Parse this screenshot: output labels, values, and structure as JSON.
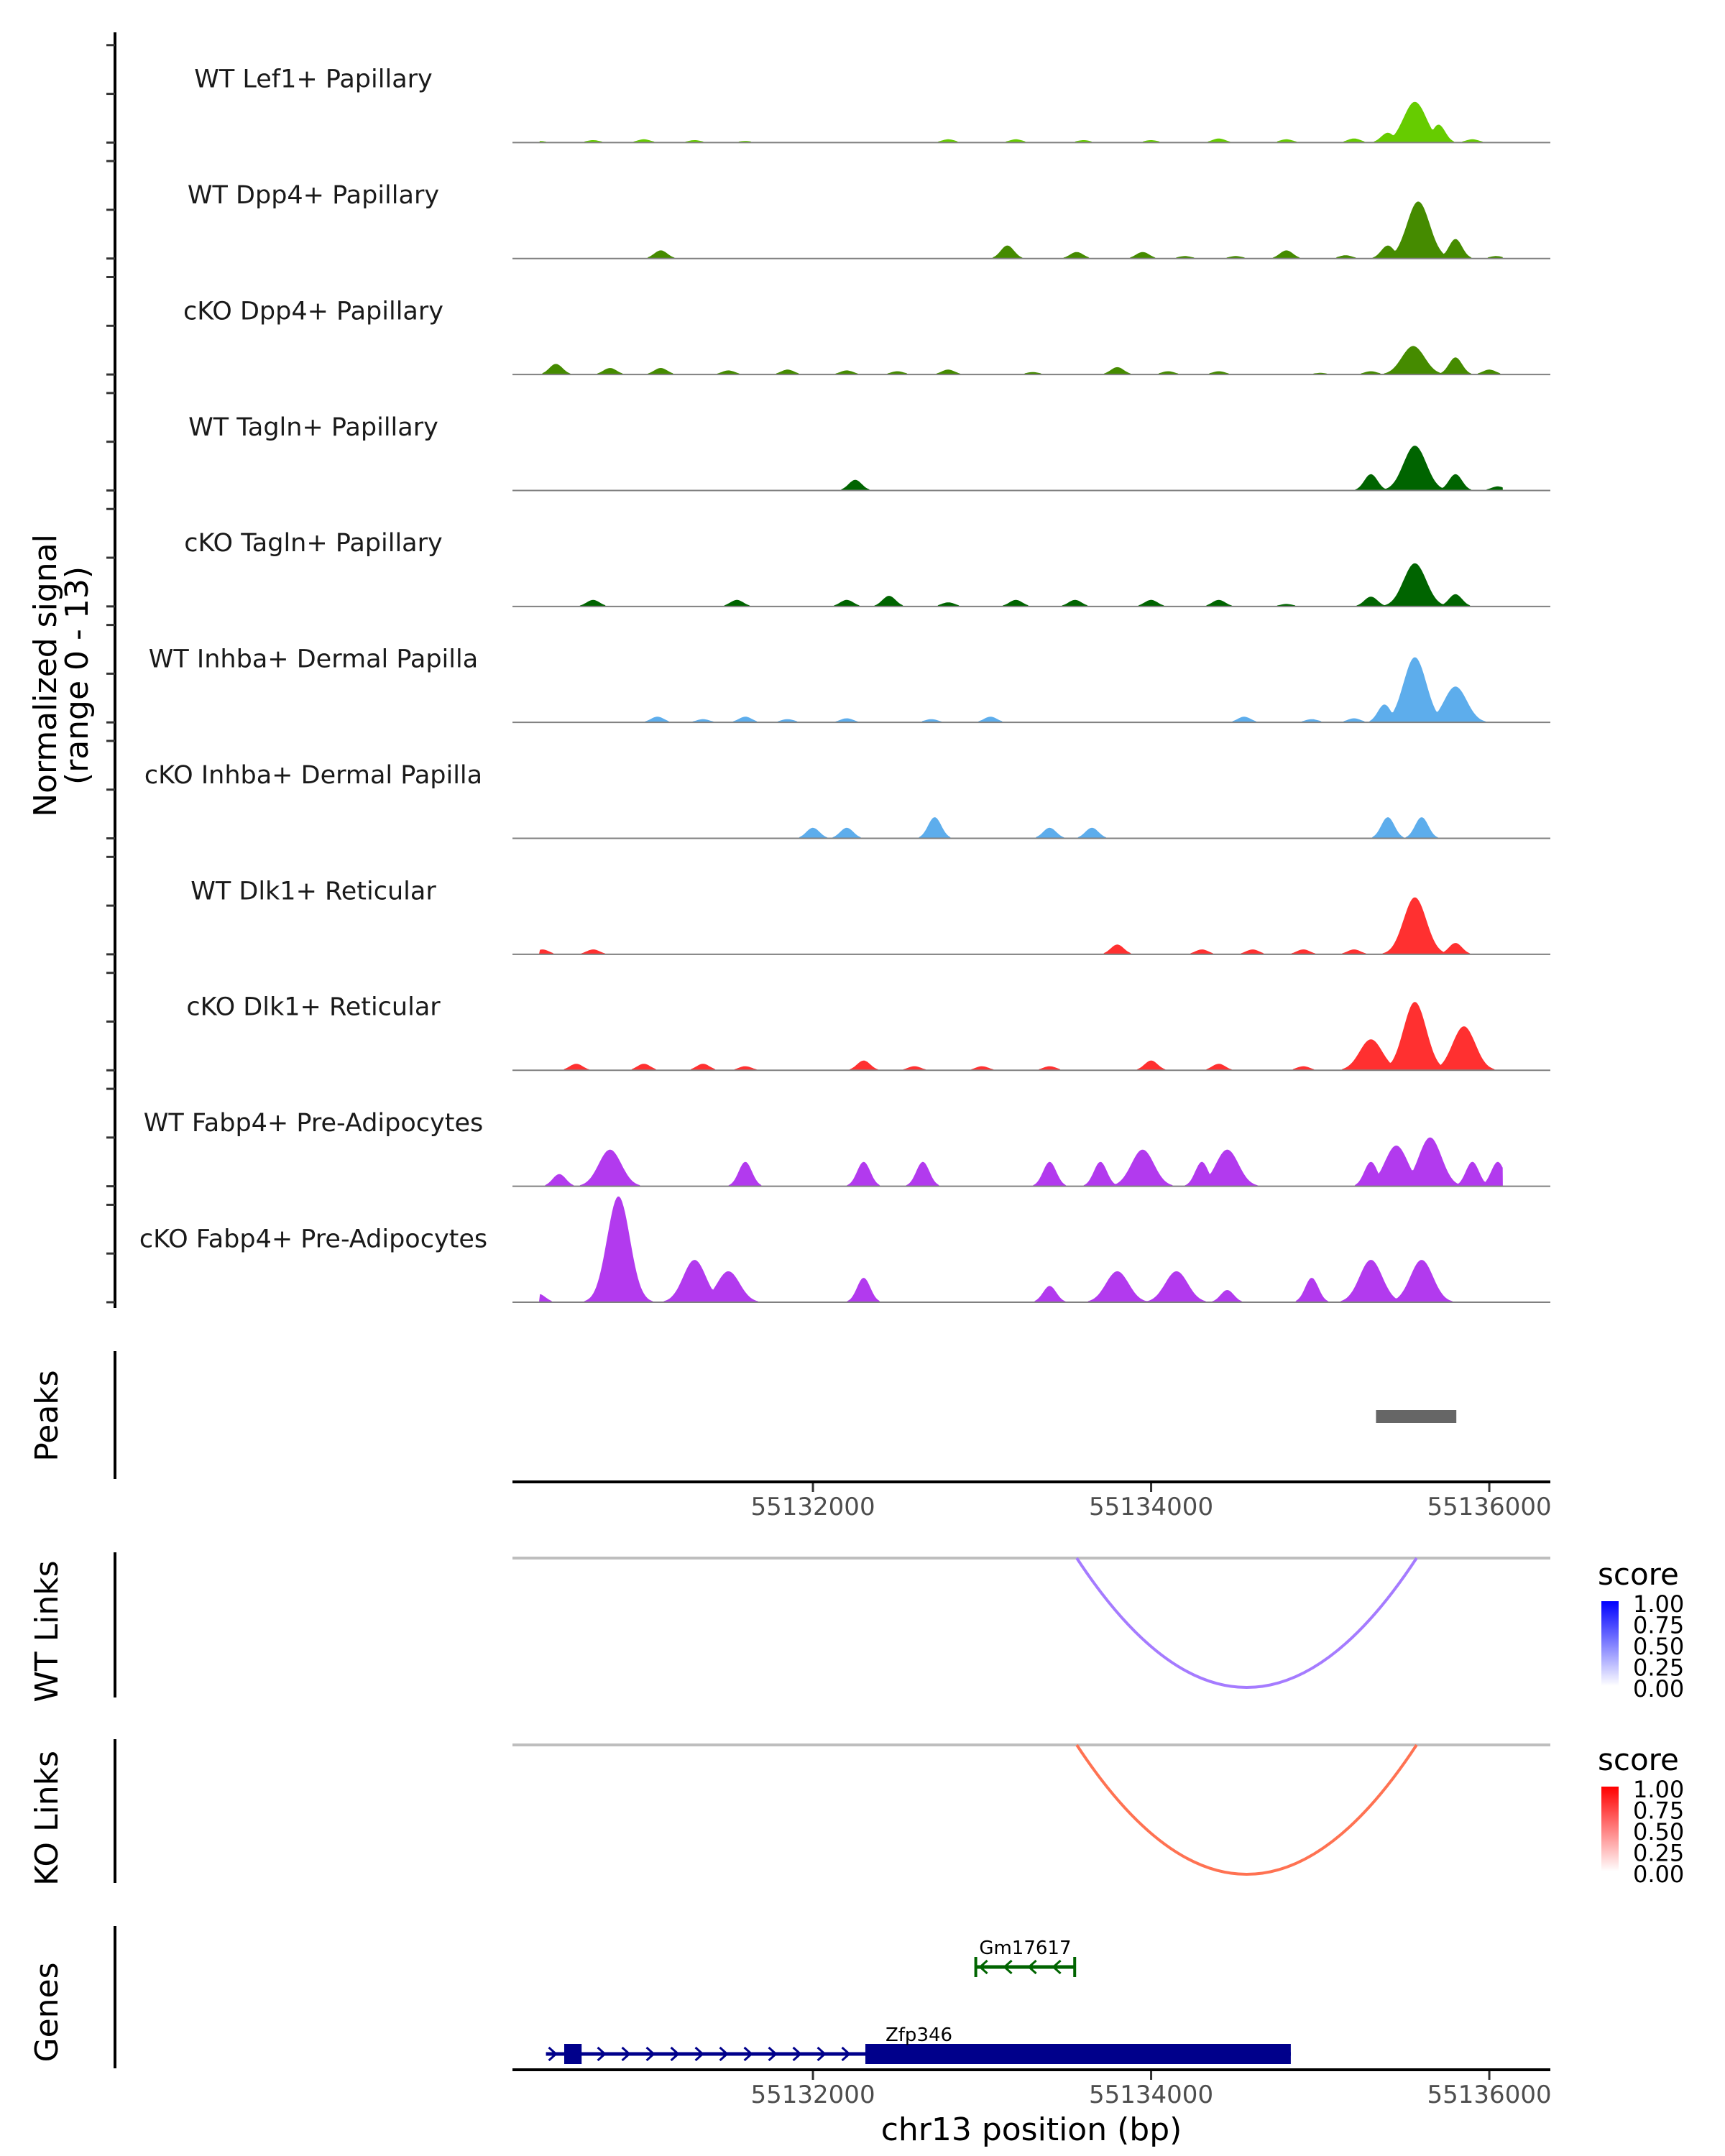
{
  "chart_data": {
    "type": "area",
    "title": "",
    "chromosome": "chr13",
    "xlabel": "chr13 position (bp)",
    "ylabel": "Normalized signal\n(range 0 - 13)",
    "ylabel_lines": [
      "Normalized signal",
      "(range 0 - 13)"
    ],
    "xlim": [
      55130223,
      55136361
    ],
    "ylim": [
      0,
      13
    ],
    "x_ticks": [
      55132000,
      55134000,
      55136000
    ],
    "x_tick_labels": [
      "55132000",
      "55134000",
      "55136000"
    ],
    "grid": false,
    "coverage_tracks": [
      {
        "name": "WT Lef1+ Papillary",
        "color": "#66CC00",
        "peaks": [
          [
            55130380,
            0.2
          ],
          [
            55130700,
            0.3
          ],
          [
            55131000,
            0.4
          ],
          [
            55131300,
            0.3
          ],
          [
            55131600,
            0.2
          ],
          [
            55132800,
            0.4
          ],
          [
            55133200,
            0.4
          ],
          [
            55133600,
            0.3
          ],
          [
            55134000,
            0.3
          ],
          [
            55134400,
            0.5
          ],
          [
            55134800,
            0.4
          ],
          [
            55135200,
            0.5
          ],
          [
            55135400,
            1.2
          ],
          [
            55135560,
            5.0
          ],
          [
            55135700,
            2.2
          ],
          [
            55135900,
            0.4
          ]
        ]
      },
      {
        "name": "WT Dpp4+ Papillary",
        "color": "#458B00",
        "peaks": [
          [
            55131100,
            1.0
          ],
          [
            55133150,
            1.6
          ],
          [
            55133560,
            0.8
          ],
          [
            55133950,
            0.8
          ],
          [
            55134200,
            0.3
          ],
          [
            55134500,
            0.3
          ],
          [
            55134800,
            1.0
          ],
          [
            55135150,
            0.4
          ],
          [
            55135400,
            1.6
          ],
          [
            55135580,
            7.0
          ],
          [
            55135800,
            2.4
          ],
          [
            55136040,
            0.3
          ]
        ]
      },
      {
        "name": "cKO Dpp4+ Papillary",
        "color": "#458B00",
        "peaks": [
          [
            55130480,
            1.3
          ],
          [
            55130800,
            0.8
          ],
          [
            55131100,
            0.8
          ],
          [
            55131500,
            0.5
          ],
          [
            55131850,
            0.6
          ],
          [
            55132200,
            0.5
          ],
          [
            55132500,
            0.4
          ],
          [
            55132800,
            0.6
          ],
          [
            55133300,
            0.3
          ],
          [
            55133800,
            0.9
          ],
          [
            55134100,
            0.4
          ],
          [
            55134400,
            0.4
          ],
          [
            55135000,
            0.2
          ],
          [
            55135300,
            0.4
          ],
          [
            55135550,
            3.5
          ],
          [
            55135800,
            2.1
          ],
          [
            55136000,
            0.6
          ]
        ]
      },
      {
        "name": "WT Tagln+ Papillary",
        "color": "#006400",
        "peaks": [
          [
            55132250,
            1.3
          ],
          [
            55135300,
            2.0
          ],
          [
            55135560,
            5.5
          ],
          [
            55135800,
            2.0
          ],
          [
            55136050,
            0.5
          ]
        ]
      },
      {
        "name": "cKO Tagln+ Papillary",
        "color": "#006400",
        "peaks": [
          [
            55130250,
            0.5
          ],
          [
            55130700,
            0.8
          ],
          [
            55131550,
            0.8
          ],
          [
            55132200,
            0.8
          ],
          [
            55132450,
            1.3
          ],
          [
            55132800,
            0.5
          ],
          [
            55133200,
            0.8
          ],
          [
            55133550,
            0.8
          ],
          [
            55134000,
            0.8
          ],
          [
            55134400,
            0.8
          ],
          [
            55134800,
            0.3
          ],
          [
            55135300,
            1.2
          ],
          [
            55135560,
            5.3
          ],
          [
            55135800,
            1.5
          ]
        ]
      },
      {
        "name": "WT Inhba+ Dermal Papilla",
        "color": "#5DADEC",
        "peaks": [
          [
            55131080,
            0.7
          ],
          [
            55131350,
            0.4
          ],
          [
            55131600,
            0.7
          ],
          [
            55131850,
            0.4
          ],
          [
            55132200,
            0.5
          ],
          [
            55132700,
            0.4
          ],
          [
            55133050,
            0.7
          ],
          [
            55134550,
            0.7
          ],
          [
            55134950,
            0.4
          ],
          [
            55135200,
            0.5
          ],
          [
            55135380,
            2.2
          ],
          [
            55135560,
            8.0
          ],
          [
            55135800,
            4.4
          ]
        ]
      },
      {
        "name": "cKO Inhba+ Dermal Papilla",
        "color": "#5DADEC",
        "peaks": [
          [
            55132000,
            1.3
          ],
          [
            55132200,
            1.3
          ],
          [
            55132720,
            2.6
          ],
          [
            55133400,
            1.3
          ],
          [
            55133650,
            1.3
          ],
          [
            55135400,
            2.6
          ],
          [
            55135600,
            2.6
          ]
        ]
      },
      {
        "name": "WT Dlk1+ Reticular",
        "color": "#FF3030",
        "peaks": [
          [
            55130400,
            0.6
          ],
          [
            55130700,
            0.6
          ],
          [
            55133800,
            1.2
          ],
          [
            55134300,
            0.6
          ],
          [
            55134600,
            0.6
          ],
          [
            55134900,
            0.6
          ],
          [
            55135200,
            0.6
          ],
          [
            55135560,
            7.0
          ],
          [
            55135800,
            1.4
          ]
        ]
      },
      {
        "name": "cKO Dlk1+ Reticular",
        "color": "#FF3030",
        "peaks": [
          [
            55130600,
            0.8
          ],
          [
            55131000,
            0.8
          ],
          [
            55131350,
            0.8
          ],
          [
            55131600,
            0.5
          ],
          [
            55132300,
            1.2
          ],
          [
            55132600,
            0.5
          ],
          [
            55133000,
            0.5
          ],
          [
            55133400,
            0.5
          ],
          [
            55134000,
            1.2
          ],
          [
            55134400,
            0.8
          ],
          [
            55134900,
            0.5
          ],
          [
            55135300,
            3.8
          ],
          [
            55135560,
            8.4
          ],
          [
            55135850,
            5.4
          ]
        ]
      },
      {
        "name": "WT Fabp4+ Pre-Adipocytes",
        "color": "#B23AEE",
        "peaks": [
          [
            55130500,
            1.5
          ],
          [
            55130800,
            4.5
          ],
          [
            55131600,
            3.0
          ],
          [
            55132300,
            3.0
          ],
          [
            55132650,
            3.0
          ],
          [
            55133400,
            3.0
          ],
          [
            55133700,
            3.0
          ],
          [
            55133950,
            4.5
          ],
          [
            55134300,
            3.0
          ],
          [
            55134450,
            4.5
          ],
          [
            55135300,
            3.0
          ],
          [
            55135450,
            5.0
          ],
          [
            55135650,
            6.0
          ],
          [
            55135900,
            3.0
          ],
          [
            55136050,
            3.0
          ]
        ]
      },
      {
        "name": "cKO Fabp4+ Pre-Adipocytes",
        "color": "#B23AEE",
        "peaks": [
          [
            55130380,
            1.0
          ],
          [
            55130850,
            13.0
          ],
          [
            55131300,
            5.2
          ],
          [
            55131500,
            3.8
          ],
          [
            55132300,
            3.0
          ],
          [
            55133400,
            2.0
          ],
          [
            55133800,
            3.8
          ],
          [
            55134150,
            3.8
          ],
          [
            55134450,
            1.5
          ],
          [
            55134950,
            3.0
          ],
          [
            55135300,
            5.2
          ],
          [
            55135600,
            5.2
          ]
        ]
      }
    ],
    "peaks_track": {
      "name": "Peaks",
      "regions": [
        [
          55135330,
          55135805
        ]
      ],
      "color": "#666666"
    },
    "links_tracks": [
      {
        "name": "WT Links",
        "color": "#A57BFF",
        "links": [
          {
            "start": 55133560,
            "end": 55135570,
            "score": 0.55
          }
        ],
        "legend": {
          "title": "score",
          "ticks": [
            "1.00",
            "0.75",
            "0.50",
            "0.25",
            "0.00"
          ],
          "low": "#FFFFFF",
          "high": "#0000FF"
        }
      },
      {
        "name": "KO Links",
        "color": "#FF7252",
        "links": [
          {
            "start": 55133560,
            "end": 55135570,
            "score": 0.6
          }
        ],
        "legend": {
          "title": "score",
          "ticks": [
            "1.00",
            "0.75",
            "0.50",
            "0.25",
            "0.00"
          ],
          "low": "#FFFFFF",
          "high": "#FF0000"
        }
      }
    ],
    "genes_track": {
      "name": "Genes",
      "genes": [
        {
          "name": "Gm17617",
          "strand": "-",
          "start": 55132963,
          "end": 55133548,
          "color": "#006400",
          "exons": []
        },
        {
          "name": "Zfp346",
          "strand": "+",
          "start": 55130421,
          "end": 55134826,
          "color": "#00008B",
          "exons": [
            [
              55130529,
              55130632
            ],
            [
              55132310,
              55134826
            ]
          ]
        }
      ]
    }
  }
}
